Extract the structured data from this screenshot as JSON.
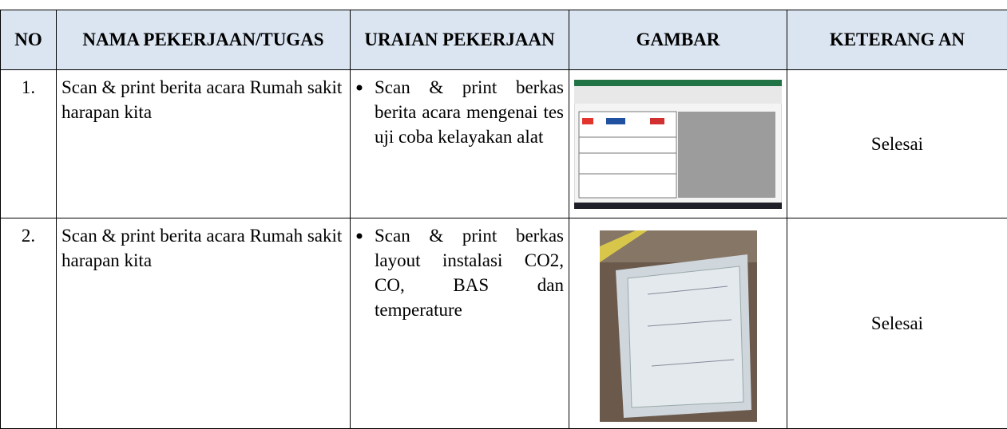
{
  "header": {
    "columns": [
      "NO",
      "NAMA PEKERJAAN/TUGAS",
      "URAIAN PEKERJAAN",
      "GAMBAR",
      "KETERANG AN"
    ]
  },
  "table": {
    "rows": [
      [
        "1.",
        "Scan & print berita acara Rumah sakit harapan kita",
        "Scan & print berkas berita acara mengenai tes uji coba kelayakan alat",
        "Selesai"
      ],
      [
        "2.",
        "Scan & print berita acara Rumah sakit harapan kita",
        "Scan & print berkas layout instalasi CO2, CO, BAS dan temperature",
        "Selesai"
      ]
    ]
  }
}
